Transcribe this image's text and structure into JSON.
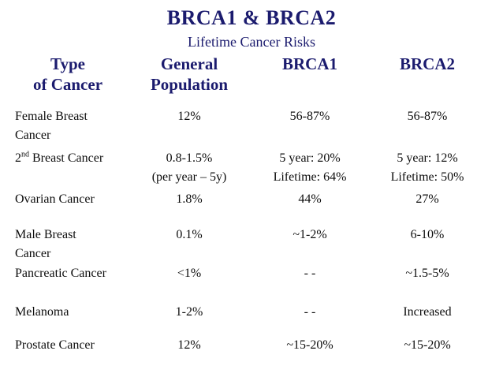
{
  "slide": {
    "title": "BRCA1 & BRCA2",
    "subtitle": "Lifetime Cancer Risks"
  },
  "colors": {
    "title_navy": "#1b1b6e",
    "body_text": "#0d0d0d",
    "background": "#ffffff"
  },
  "table": {
    "headers": {
      "type": "Type\nof Cancer",
      "general": "General\nPopulation",
      "brca1": "BRCA1",
      "brca2": "BRCA2"
    },
    "rows": [
      {
        "type": "Female Breast\nCancer",
        "general": "12%",
        "brca1": "56-87%",
        "brca2": "56-87%"
      },
      {
        "type_base": "2",
        "type_sup": "nd",
        "type_rest": " Breast Cancer",
        "general": "0.8-1.5%\n(per year – 5y)",
        "brca1": "5 year: 20%\nLifetime: 64%",
        "brca2": "5 year: 12%\nLifetime: 50%"
      },
      {
        "type": "Ovarian Cancer",
        "general": "1.8%",
        "brca1": "44%",
        "brca2": "27%"
      },
      {
        "type": "Male Breast\nCancer",
        "general": "0.1%",
        "brca1": "~1-2%",
        "brca2": "6-10%"
      },
      {
        "type": "Pancreatic Cancer",
        "general": "<1%",
        "brca1": "- -",
        "brca2": "~1.5-5%"
      },
      {
        "type": "Melanoma",
        "general": "1-2%",
        "brca1": "- -",
        "brca2": "Increased"
      },
      {
        "type": "Prostate Cancer",
        "general": "12%",
        "brca1": "~15-20%",
        "brca2": "~15-20%"
      }
    ]
  }
}
